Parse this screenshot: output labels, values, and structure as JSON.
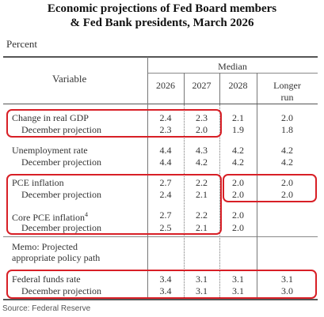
{
  "title_line1": "Economic projections of Fed Board members",
  "title_line2": "& Fed Bank presidents, March 2026",
  "unit_label": "Percent",
  "header": {
    "variable": "Variable",
    "median": "Median",
    "col_2026": "2026",
    "col_2027": "2027",
    "col_2028": "2028",
    "col_longer_1": "Longer",
    "col_longer_2": "run"
  },
  "rows": {
    "gdp": {
      "label": "Change in real GDP",
      "v2026": "2.4",
      "v2027": "2.3",
      "v2028": "2.1",
      "vlr": "2.0"
    },
    "gdp_dec": {
      "label": "December projection",
      "v2026": "2.3",
      "v2027": "2.0",
      "v2028": "1.9",
      "vlr": "1.8"
    },
    "unemp": {
      "label": "Unemployment rate",
      "v2026": "4.4",
      "v2027": "4.3",
      "v2028": "4.2",
      "vlr": "4.2"
    },
    "unemp_dec": {
      "label": "December projection",
      "v2026": "4.4",
      "v2027": "4.2",
      "v2028": "4.2",
      "vlr": "4.2"
    },
    "pce": {
      "label": "PCE inflation",
      "v2026": "2.7",
      "v2027": "2.2",
      "v2028": "2.0",
      "vlr": "2.0"
    },
    "pce_dec": {
      "label": "December projection",
      "v2026": "2.4",
      "v2027": "2.1",
      "v2028": "2.0",
      "vlr": "2.0"
    },
    "core": {
      "label": "Core PCE inflation",
      "sup": "4",
      "v2026": "2.7",
      "v2027": "2.2",
      "v2028": "2.0",
      "vlr": ""
    },
    "core_dec": {
      "label": "December projection",
      "v2026": "2.5",
      "v2027": "2.1",
      "v2028": "2.0",
      "vlr": ""
    },
    "memo_1": {
      "label": "Memo: Projected"
    },
    "memo_2": {
      "label": "appropriate policy path"
    },
    "ffr": {
      "label": "Federal funds rate",
      "v2026": "3.4",
      "v2027": "3.1",
      "v2028": "3.1",
      "vlr": "3.1"
    },
    "ffr_dec": {
      "label": "December projection",
      "v2026": "3.4",
      "v2027": "3.1",
      "v2028": "3.1",
      "vlr": "3.0"
    }
  },
  "colors": {
    "highlight": "#d81f26"
  },
  "source": "Source: Federal Reserve"
}
